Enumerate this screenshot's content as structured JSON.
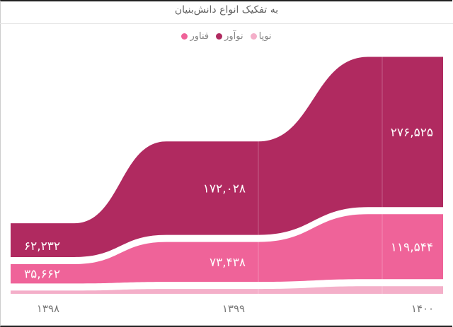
{
  "chart_data": {
    "type": "area",
    "title": "به تفکیک انواع دانش‌بنیان",
    "categories": [
      "۱۳۹۸",
      "۱۳۹۹",
      "۱۴۰۰"
    ],
    "stacked": true,
    "legend_position": "top",
    "grid": false,
    "series": [
      {
        "name": "نوپا",
        "color": "#f4afc9",
        "values": [
          6000,
          9000,
          14000
        ],
        "labels": [
          "",
          "",
          ""
        ]
      },
      {
        "name": "فناور",
        "color": "#ef6399",
        "values": [
          35662,
          73438,
          119544
        ],
        "labels": [
          "۳۵,۶۶۲",
          "۷۳,۴۳۸",
          "۱۱۹,۵۴۴"
        ]
      },
      {
        "name": "نوآور",
        "color": "#b02a60",
        "values": [
          62232,
          172028,
          276525
        ],
        "labels": [
          "۶۲,۲۳۲",
          "۱۷۲,۰۲۸",
          "۲۷۶,۵۲۵"
        ]
      }
    ],
    "legend_order": [
      "نوپا",
      "نوآور",
      "فناور"
    ]
  }
}
